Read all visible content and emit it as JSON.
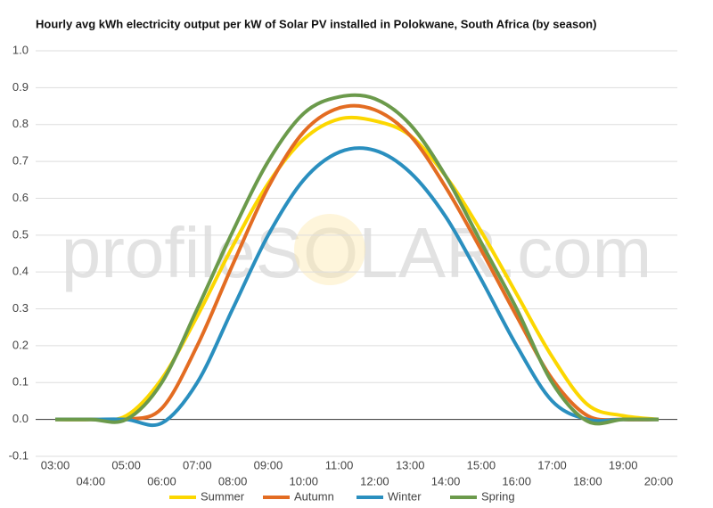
{
  "chart_data": {
    "type": "line",
    "title": "Hourly avg kWh electricity output per kW of Solar PV installed in Polokwane, South Africa (by season)",
    "watermark": "profileSOLAR.com",
    "categories": [
      "03:00",
      "04:00",
      "05:00",
      "06:00",
      "07:00",
      "08:00",
      "09:00",
      "10:00",
      "11:00",
      "12:00",
      "13:00",
      "14:00",
      "15:00",
      "16:00",
      "17:00",
      "18:00",
      "19:00",
      "20:00"
    ],
    "series": [
      {
        "name": "Summer",
        "color": "#fcd700",
        "values": [
          0,
          0,
          0.01,
          0.11,
          0.28,
          0.47,
          0.64,
          0.76,
          0.815,
          0.81,
          0.77,
          0.66,
          0.51,
          0.34,
          0.17,
          0.04,
          0.01,
          0
        ]
      },
      {
        "name": "Autumn",
        "color": "#e36c22",
        "values": [
          0,
          0,
          0,
          0.03,
          0.2,
          0.42,
          0.63,
          0.78,
          0.845,
          0.84,
          0.77,
          0.63,
          0.46,
          0.28,
          0.11,
          0.01,
          0,
          0
        ]
      },
      {
        "name": "Winter",
        "color": "#2a8fbf",
        "values": [
          0,
          0,
          0,
          -0.01,
          0.1,
          0.3,
          0.5,
          0.65,
          0.725,
          0.73,
          0.67,
          0.55,
          0.38,
          0.2,
          0.05,
          0,
          0,
          0
        ]
      },
      {
        "name": "Spring",
        "color": "#6b9a4b",
        "values": [
          0,
          0,
          0,
          0.1,
          0.3,
          0.51,
          0.7,
          0.83,
          0.875,
          0.87,
          0.8,
          0.66,
          0.48,
          0.3,
          0.1,
          -0.005,
          0,
          0
        ]
      }
    ],
    "ylim": [
      -0.1,
      1.0
    ],
    "yticks": [
      -0.1,
      {
        "value": 0,
        "label": "0.0"
      },
      0.1,
      0.2,
      0.3,
      0.4,
      0.5,
      0.6,
      0.7,
      0.8,
      0.9,
      {
        "value": 1,
        "label": "1.0"
      }
    ],
    "grid": true,
    "legend": "bottom"
  }
}
